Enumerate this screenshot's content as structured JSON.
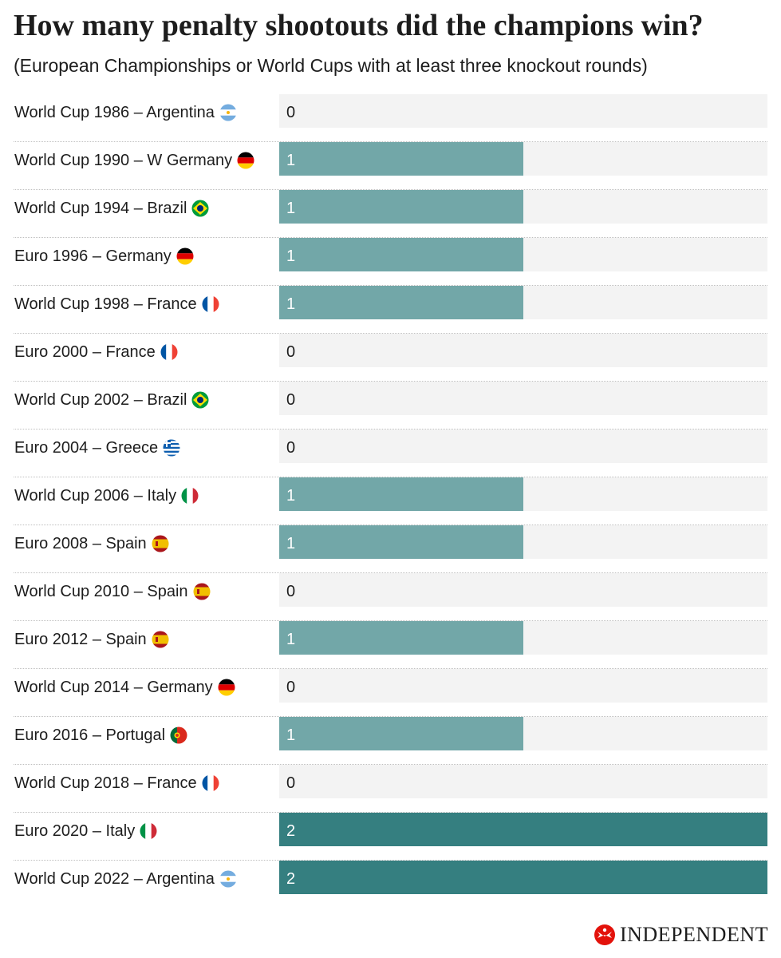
{
  "chart_data": {
    "type": "bar",
    "orientation": "horizontal",
    "title": "How many penalty shootouts did the champions win?",
    "subtitle": "(European Championships or World Cups with at least three knockout rounds)",
    "categories": [
      "World Cup 1986 – Argentina",
      "World Cup 1990 – W Germany",
      "World Cup 1994 – Brazil",
      "Euro 1996 – Germany",
      "World Cup 1998 – France",
      "Euro 2000 – France",
      "World Cup 2002 – Brazil",
      "Euro 2004 – Greece",
      "World Cup 2006 – Italy",
      "Euro 2008 – Spain",
      "World Cup 2010 – Spain",
      "Euro 2012 – Spain",
      "World Cup 2014 – Germany",
      "Euro 2016 – Portugal",
      "World Cup 2018 – France",
      "Euro 2020 – Italy",
      "World Cup 2022 – Argentina"
    ],
    "values": [
      0,
      1,
      1,
      1,
      1,
      0,
      0,
      0,
      1,
      1,
      0,
      1,
      0,
      1,
      0,
      2,
      2
    ],
    "flags": [
      "argentina",
      "germany",
      "brazil",
      "germany",
      "france",
      "france",
      "brazil",
      "greece",
      "italy",
      "spain",
      "spain",
      "spain",
      "germany",
      "portugal",
      "france",
      "italy",
      "argentina"
    ],
    "xlim": [
      0,
      2
    ],
    "colors": {
      "one": "#72a7a8",
      "two": "#357f80",
      "track": "#f3f3f3",
      "label_on_bar": "#ffffff",
      "label_off_bar": "#1d1d1d"
    }
  },
  "brand": {
    "name": "INDEPENDENT",
    "logo_color": "#e3120b"
  }
}
